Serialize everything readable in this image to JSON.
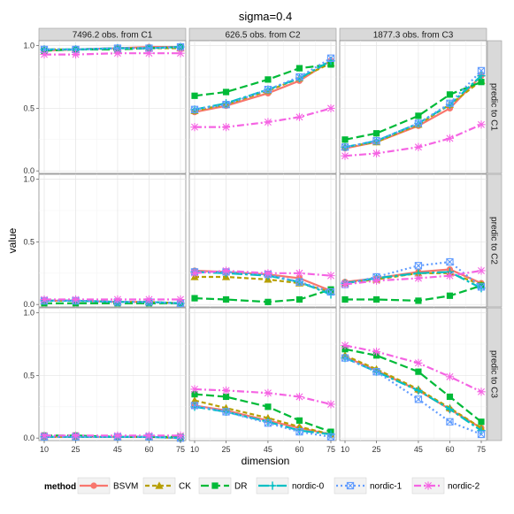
{
  "chart_data": {
    "type": "line",
    "title": "sigma=0.4",
    "xlabel": "dimension",
    "ylabel": "value",
    "x": [
      10,
      25,
      45,
      60,
      75
    ],
    "xticks": [
      "10",
      "25",
      "45",
      "60",
      "75"
    ],
    "ylim": [
      -0.02,
      1.04
    ],
    "yticks": [
      "0.0",
      "0.5",
      "1.0"
    ],
    "grid": true,
    "legend_position": "bottom",
    "column_labels": [
      "7496.2 obs. from C1",
      "626.5 obs. from C2",
      "1877.3 obs. from C3"
    ],
    "row_labels": [
      "predic to C1",
      "predic to C2",
      "predic to C3"
    ],
    "legend_title": "method",
    "series": [
      {
        "name": "BSVM",
        "color": "#F8766D",
        "marker": "circle",
        "dash": ""
      },
      {
        "name": "CK",
        "color": "#B79F00",
        "marker": "triangle",
        "dash": "5,3"
      },
      {
        "name": "DR",
        "color": "#00BA38",
        "marker": "square",
        "dash": "9,4"
      },
      {
        "name": "nordic-0",
        "color": "#00BFC4",
        "marker": "plus",
        "dash": "12,3,3,3"
      },
      {
        "name": "nordic-1",
        "color": "#619CFF",
        "marker": "boxx",
        "dash": "2,3"
      },
      {
        "name": "nordic-2",
        "color": "#F564E3",
        "marker": "star",
        "dash": "8,3,2,3"
      }
    ],
    "panels": [
      [
        [
          [
            0.96,
            0.97,
            0.98,
            0.99,
            0.99
          ],
          [
            0.97,
            0.97,
            0.98,
            0.98,
            0.98
          ],
          [
            0.96,
            0.97,
            0.97,
            0.98,
            0.99
          ],
          [
            0.97,
            0.97,
            0.98,
            0.98,
            0.99
          ],
          [
            0.97,
            0.97,
            0.98,
            0.98,
            0.99
          ],
          [
            0.93,
            0.93,
            0.94,
            0.94,
            0.94
          ]
        ],
        [
          [
            0.47,
            0.52,
            0.62,
            0.72,
            0.88
          ],
          [
            0.48,
            0.53,
            0.64,
            0.74,
            0.86
          ],
          [
            0.6,
            0.63,
            0.73,
            0.82,
            0.85
          ],
          [
            0.49,
            0.54,
            0.65,
            0.74,
            0.88
          ],
          [
            0.49,
            0.53,
            0.65,
            0.75,
            0.9
          ],
          [
            0.35,
            0.35,
            0.39,
            0.43,
            0.5
          ]
        ],
        [
          [
            0.18,
            0.23,
            0.36,
            0.5,
            0.76
          ],
          [
            0.19,
            0.23,
            0.37,
            0.53,
            0.72
          ],
          [
            0.25,
            0.3,
            0.44,
            0.61,
            0.71
          ],
          [
            0.19,
            0.24,
            0.38,
            0.53,
            0.76
          ],
          [
            0.19,
            0.24,
            0.38,
            0.54,
            0.8
          ],
          [
            0.12,
            0.14,
            0.19,
            0.26,
            0.37
          ]
        ]
      ],
      [
        [
          [
            0.03,
            0.03,
            0.02,
            0.02,
            0.01
          ],
          [
            0.03,
            0.03,
            0.02,
            0.02,
            0.01
          ],
          [
            0.01,
            0.01,
            0.01,
            0.01,
            0.01
          ],
          [
            0.03,
            0.03,
            0.02,
            0.02,
            0.01
          ],
          [
            0.03,
            0.03,
            0.02,
            0.02,
            0.01
          ],
          [
            0.04,
            0.04,
            0.04,
            0.04,
            0.04
          ]
        ],
        [
          [
            0.27,
            0.26,
            0.24,
            0.21,
            0.11
          ],
          [
            0.22,
            0.22,
            0.2,
            0.17,
            0.1
          ],
          [
            0.05,
            0.04,
            0.02,
            0.04,
            0.12
          ],
          [
            0.26,
            0.25,
            0.23,
            0.18,
            0.08
          ],
          [
            0.26,
            0.26,
            0.24,
            0.18,
            0.1
          ],
          [
            0.25,
            0.27,
            0.25,
            0.25,
            0.23
          ]
        ],
        [
          [
            0.18,
            0.21,
            0.26,
            0.28,
            0.17
          ],
          [
            0.17,
            0.2,
            0.25,
            0.25,
            0.16
          ],
          [
            0.04,
            0.04,
            0.03,
            0.07,
            0.15
          ],
          [
            0.17,
            0.21,
            0.25,
            0.26,
            0.13
          ],
          [
            0.16,
            0.22,
            0.31,
            0.34,
            0.14
          ],
          [
            0.16,
            0.19,
            0.21,
            0.23,
            0.27
          ]
        ]
      ],
      [
        [
          [
            0.01,
            0.01,
            0.01,
            0.01,
            0.0
          ],
          [
            0.01,
            0.01,
            0.01,
            0.01,
            0.0
          ],
          [
            0.02,
            0.02,
            0.01,
            0.01,
            0.01
          ],
          [
            0.01,
            0.01,
            0.01,
            0.01,
            0.0
          ],
          [
            0.01,
            0.01,
            0.01,
            0.01,
            0.0
          ],
          [
            0.02,
            0.02,
            0.02,
            0.02,
            0.02
          ]
        ],
        [
          [
            0.26,
            0.22,
            0.14,
            0.08,
            0.03
          ],
          [
            0.3,
            0.24,
            0.16,
            0.09,
            0.03
          ],
          [
            0.35,
            0.33,
            0.25,
            0.14,
            0.05
          ],
          [
            0.25,
            0.21,
            0.13,
            0.06,
            0.03
          ],
          [
            0.26,
            0.21,
            0.12,
            0.05,
            0.01
          ],
          [
            0.39,
            0.38,
            0.36,
            0.33,
            0.27
          ]
        ],
        [
          [
            0.65,
            0.54,
            0.38,
            0.23,
            0.08
          ],
          [
            0.66,
            0.55,
            0.39,
            0.24,
            0.08
          ],
          [
            0.71,
            0.66,
            0.53,
            0.33,
            0.13
          ],
          [
            0.64,
            0.53,
            0.38,
            0.23,
            0.06
          ],
          [
            0.64,
            0.53,
            0.31,
            0.13,
            0.03
          ],
          [
            0.74,
            0.69,
            0.6,
            0.49,
            0.37
          ]
        ]
      ]
    ]
  }
}
